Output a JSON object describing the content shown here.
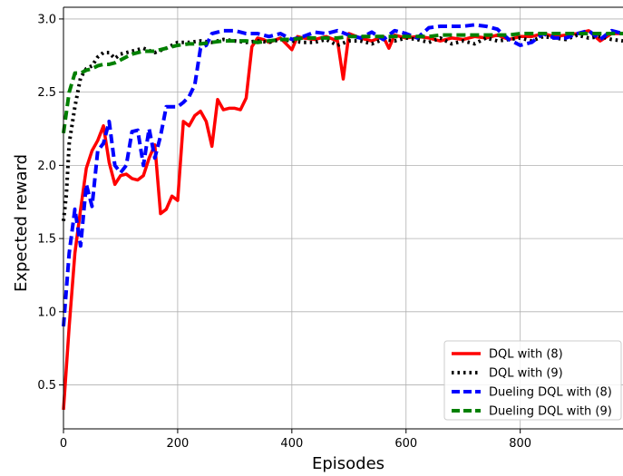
{
  "chart_data": {
    "type": "line",
    "xlabel": "Episodes",
    "ylabel": "Expected reward",
    "xlim": [
      0,
      980
    ],
    "ylim": [
      0.2,
      3.08
    ],
    "xticks": [
      0,
      200,
      400,
      600,
      800
    ],
    "yticks": [
      0.5,
      1.0,
      1.5,
      2.0,
      2.5,
      3.0
    ],
    "xtick_labels": [
      "0",
      "200",
      "400",
      "600",
      "800"
    ],
    "ytick_labels": [
      "0.5",
      "1.0",
      "1.5",
      "2.0",
      "2.5",
      "3.0"
    ],
    "grid": true,
    "legend_position": "bottom-right",
    "series": [
      {
        "name": "DQL with (8)",
        "color": "#ff0000",
        "style": "solid",
        "x": [
          0,
          10,
          20,
          30,
          40,
          50,
          60,
          70,
          80,
          90,
          100,
          110,
          120,
          130,
          140,
          150,
          160,
          170,
          180,
          190,
          200,
          210,
          220,
          230,
          240,
          250,
          260,
          270,
          280,
          290,
          300,
          310,
          320,
          330,
          340,
          350,
          360,
          380,
          400,
          410,
          420,
          440,
          460,
          480,
          490,
          500,
          520,
          540,
          560,
          570,
          580,
          600,
          620,
          640,
          660,
          680,
          700,
          720,
          740,
          760,
          780,
          800,
          820,
          840,
          860,
          880,
          900,
          920,
          940,
          960,
          980
        ],
        "y": [
          0.33,
          0.9,
          1.4,
          1.7,
          1.98,
          2.1,
          2.17,
          2.27,
          2.02,
          1.87,
          1.93,
          1.94,
          1.91,
          1.9,
          1.93,
          2.05,
          2.14,
          1.67,
          1.7,
          1.79,
          1.76,
          2.3,
          2.27,
          2.34,
          2.37,
          2.3,
          2.13,
          2.45,
          2.38,
          2.39,
          2.39,
          2.38,
          2.46,
          2.81,
          2.87,
          2.86,
          2.84,
          2.87,
          2.79,
          2.88,
          2.87,
          2.86,
          2.88,
          2.85,
          2.59,
          2.9,
          2.87,
          2.85,
          2.88,
          2.8,
          2.89,
          2.87,
          2.88,
          2.87,
          2.85,
          2.87,
          2.86,
          2.88,
          2.87,
          2.89,
          2.86,
          2.88,
          2.88,
          2.9,
          2.88,
          2.89,
          2.9,
          2.92,
          2.85,
          2.9,
          2.9
        ]
      },
      {
        "name": "DQL with (9)",
        "color": "#000000",
        "style": "dotted",
        "x": [
          0,
          5,
          10,
          20,
          30,
          40,
          50,
          60,
          70,
          80,
          90,
          100,
          120,
          140,
          160,
          180,
          200,
          220,
          240,
          260,
          280,
          300,
          320,
          340,
          360,
          380,
          400,
          420,
          440,
          460,
          480,
          500,
          520,
          540,
          560,
          580,
          600,
          620,
          640,
          660,
          680,
          700,
          720,
          740,
          760,
          780,
          800,
          820,
          840,
          860,
          880,
          900,
          920,
          940,
          960,
          980
        ],
        "y": [
          1.62,
          1.8,
          2.15,
          2.4,
          2.6,
          2.66,
          2.68,
          2.74,
          2.77,
          2.77,
          2.73,
          2.76,
          2.78,
          2.8,
          2.77,
          2.8,
          2.84,
          2.84,
          2.85,
          2.84,
          2.86,
          2.85,
          2.84,
          2.85,
          2.84,
          2.86,
          2.85,
          2.84,
          2.84,
          2.86,
          2.82,
          2.85,
          2.85,
          2.83,
          2.86,
          2.85,
          2.87,
          2.86,
          2.84,
          2.87,
          2.83,
          2.85,
          2.83,
          2.87,
          2.85,
          2.86,
          2.87,
          2.85,
          2.88,
          2.87,
          2.86,
          2.89,
          2.87,
          2.88,
          2.86,
          2.85
        ]
      },
      {
        "name": "Dueling DQL with (8)",
        "color": "#0000ff",
        "style": "dashed",
        "x": [
          0,
          10,
          20,
          30,
          40,
          50,
          60,
          70,
          80,
          90,
          100,
          110,
          120,
          130,
          140,
          150,
          160,
          170,
          180,
          190,
          200,
          210,
          220,
          230,
          240,
          250,
          260,
          280,
          300,
          320,
          340,
          360,
          380,
          400,
          420,
          440,
          460,
          480,
          500,
          520,
          540,
          560,
          580,
          600,
          620,
          640,
          660,
          680,
          700,
          720,
          740,
          760,
          780,
          800,
          820,
          840,
          860,
          880,
          900,
          920,
          940,
          960,
          980
        ],
        "y": [
          0.9,
          1.4,
          1.7,
          1.45,
          1.87,
          1.72,
          2.1,
          2.15,
          2.3,
          2.0,
          1.95,
          2.0,
          2.23,
          2.24,
          2.0,
          2.25,
          2.05,
          2.2,
          2.4,
          2.4,
          2.4,
          2.43,
          2.47,
          2.55,
          2.8,
          2.82,
          2.9,
          2.92,
          2.92,
          2.9,
          2.9,
          2.88,
          2.9,
          2.86,
          2.88,
          2.91,
          2.9,
          2.92,
          2.89,
          2.87,
          2.91,
          2.86,
          2.92,
          2.9,
          2.87,
          2.94,
          2.95,
          2.95,
          2.95,
          2.96,
          2.95,
          2.93,
          2.86,
          2.82,
          2.84,
          2.9,
          2.87,
          2.87,
          2.9,
          2.92,
          2.86,
          2.92,
          2.9
        ]
      },
      {
        "name": "Dueling DQL with (9)",
        "color": "#008000",
        "style": "dashed",
        "x": [
          0,
          10,
          20,
          30,
          40,
          50,
          60,
          70,
          80,
          90,
          100,
          120,
          140,
          160,
          180,
          200,
          220,
          240,
          260,
          280,
          300,
          320,
          340,
          360,
          380,
          400,
          420,
          440,
          460,
          480,
          500,
          520,
          540,
          560,
          580,
          600,
          620,
          640,
          660,
          680,
          700,
          720,
          740,
          760,
          780,
          800,
          820,
          840,
          860,
          880,
          900,
          920,
          940,
          960,
          980
        ],
        "y": [
          2.22,
          2.5,
          2.63,
          2.63,
          2.65,
          2.66,
          2.68,
          2.69,
          2.69,
          2.7,
          2.72,
          2.76,
          2.78,
          2.78,
          2.8,
          2.82,
          2.83,
          2.83,
          2.84,
          2.85,
          2.85,
          2.85,
          2.84,
          2.85,
          2.86,
          2.86,
          2.87,
          2.87,
          2.87,
          2.87,
          2.88,
          2.88,
          2.88,
          2.88,
          2.88,
          2.88,
          2.88,
          2.88,
          2.89,
          2.89,
          2.89,
          2.89,
          2.89,
          2.89,
          2.89,
          2.9,
          2.9,
          2.9,
          2.9,
          2.9,
          2.9,
          2.9,
          2.9,
          2.9,
          2.9
        ]
      }
    ]
  }
}
